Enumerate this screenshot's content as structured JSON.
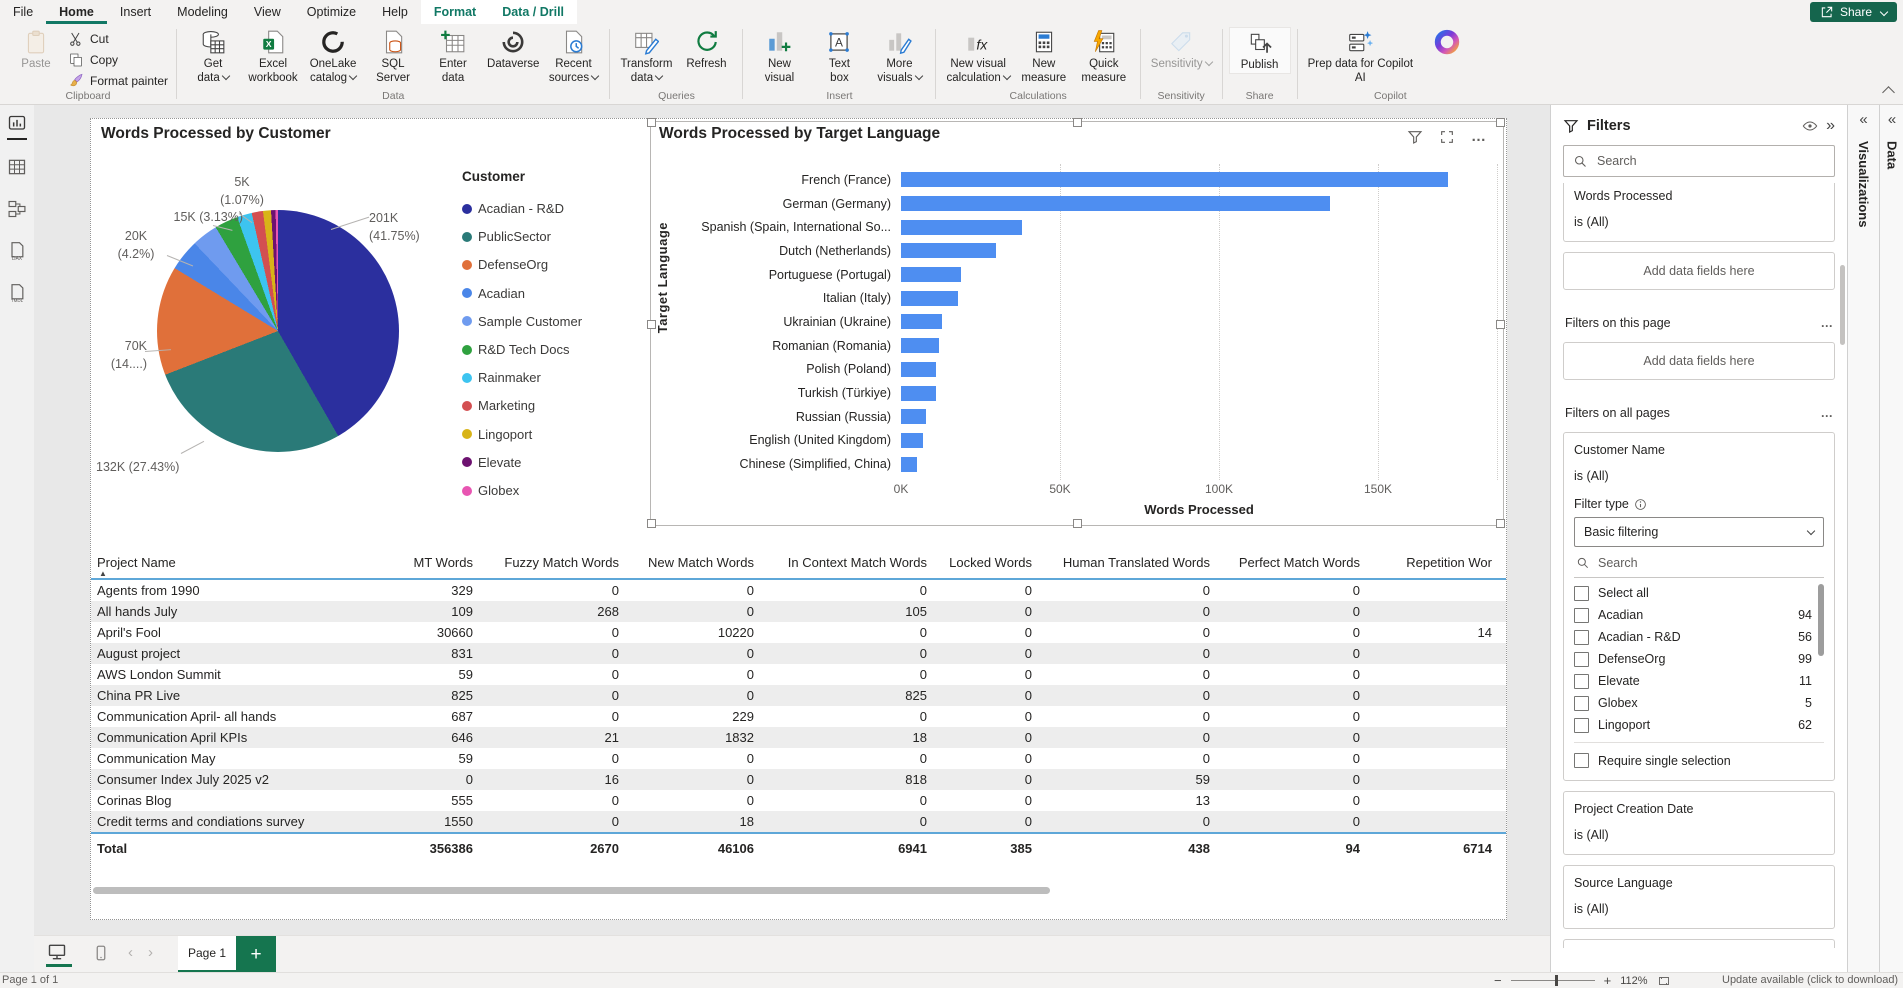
{
  "colors": {
    "accent_teal": "#117865",
    "share_green": "#15654d",
    "tab_green": "#15754f",
    "bar_blue": "#4e8ef1",
    "separator_blue": "#5ea7d8"
  },
  "menu": {
    "tabs": [
      "File",
      "Home",
      "Insert",
      "Modeling",
      "View",
      "Optimize",
      "Help"
    ],
    "active": "Home",
    "contextual": [
      "Format",
      "Data / Drill"
    ],
    "share": "Share"
  },
  "ribbon": {
    "groups": [
      {
        "label": "Clipboard",
        "items": [
          {
            "label": "Paste",
            "icon": "clipboard",
            "large": true,
            "disabled": true
          },
          {
            "label": "Cut",
            "icon": "scissors"
          },
          {
            "label": "Copy",
            "icon": "copy"
          },
          {
            "label": "Format painter",
            "icon": "brush"
          }
        ]
      },
      {
        "label": "Data",
        "items": [
          {
            "label": "Get\ndata",
            "icon": "database",
            "large": true,
            "caret": true
          },
          {
            "label": "Excel\nworkbook",
            "icon": "excel",
            "large": true
          },
          {
            "label": "OneLake\ncatalog",
            "icon": "onelake",
            "large": true,
            "caret": true
          },
          {
            "label": "SQL\nServer",
            "icon": "sql",
            "large": true
          },
          {
            "label": "Enter\ndata",
            "icon": "enterdata",
            "large": true
          },
          {
            "label": "Dataverse",
            "icon": "dataverse",
            "large": true
          },
          {
            "label": "Recent\nsources",
            "icon": "recent",
            "large": true,
            "caret": true
          }
        ]
      },
      {
        "label": "Queries",
        "items": [
          {
            "label": "Transform\ndata",
            "icon": "transform",
            "large": true,
            "caret": true
          },
          {
            "label": "Refresh",
            "icon": "refresh",
            "large": true
          }
        ]
      },
      {
        "label": "Insert",
        "items": [
          {
            "label": "New\nvisual",
            "icon": "newvisual",
            "large": true
          },
          {
            "label": "Text\nbox",
            "icon": "textbox",
            "large": true
          },
          {
            "label": "More\nvisuals",
            "icon": "morevisuals",
            "large": true,
            "caret": true
          }
        ]
      },
      {
        "label": "Calculations",
        "items": [
          {
            "label": "New visual\ncalculation",
            "icon": "fx",
            "large": true,
            "caret": true
          },
          {
            "label": "New\nmeasure",
            "icon": "calculator",
            "large": true
          },
          {
            "label": "Quick\nmeasure",
            "icon": "quickmeasure",
            "large": true
          }
        ]
      },
      {
        "label": "Sensitivity",
        "items": [
          {
            "label": "Sensitivity",
            "icon": "sensitivity",
            "large": true,
            "disabled": true,
            "caret": true
          }
        ]
      },
      {
        "label": "Share",
        "items": [
          {
            "label": "Publish",
            "icon": "publish",
            "large": true,
            "highlight": true
          }
        ]
      },
      {
        "label": "Copilot",
        "items": [
          {
            "label": "Prep data for Copilot\nAI",
            "icon": "prepdata",
            "large": true
          },
          {
            "label": "",
            "icon": "copilot",
            "large": true
          }
        ]
      }
    ]
  },
  "sidebar": {
    "items": [
      "report-view",
      "table-view",
      "model-view",
      "dax-query-view",
      "tmdl-view"
    ],
    "active": "report-view"
  },
  "chart_data": [
    {
      "type": "pie",
      "title": "Words Processed by Customer",
      "legend_title": "Customer",
      "legend_position": "right",
      "slices": [
        {
          "label": "Acadian - R&D",
          "color": "#2b2f9e",
          "pct": 41.75,
          "value": "201K",
          "callout": "201K\n(41.75%)"
        },
        {
          "label": "PublicSector",
          "color": "#2a7a78",
          "pct": 27.43,
          "value": "132K",
          "callout": "132K (27.43%)"
        },
        {
          "label": "DefenseOrg",
          "color": "#e0703a",
          "pct": 14.6,
          "value": "70K",
          "callout": "70K\n(14....)"
        },
        {
          "label": "Acadian",
          "color": "#4a86e8",
          "pct": 4.2,
          "value": "20K",
          "callout": "20K\n(4.2%)"
        },
        {
          "label": "Sample Customer",
          "color": "#6f9bef",
          "pct": 3.5
        },
        {
          "label": "R&D Tech Docs",
          "color": "#2fa13f",
          "pct": 3.13,
          "value": "15K",
          "callout": "15K (3.13%)"
        },
        {
          "label": "Rainmaker",
          "color": "#3dc4f0",
          "pct": 2.0
        },
        {
          "label": "Marketing",
          "color": "#d34f51",
          "pct": 1.5
        },
        {
          "label": "Lingoport",
          "color": "#d8b418",
          "pct": 1.07,
          "value": "5K",
          "callout": "5K\n(1.07%)"
        },
        {
          "label": "Elevate",
          "color": "#6d1270",
          "pct": 0.6
        },
        {
          "label": "Globex",
          "color": "#e855b2",
          "pct": 0.32
        }
      ]
    },
    {
      "type": "bar",
      "orientation": "horizontal",
      "title": "Words Processed by Target Language",
      "xlabel": "Words Processed",
      "ylabel": "Target Language",
      "grid": true,
      "categories": [
        "French (France)",
        "German (Germany)",
        "Spanish (Spain, International So...",
        "Dutch (Netherlands)",
        "Portuguese (Portugal)",
        "Italian (Italy)",
        "Ukrainian (Ukraine)",
        "Romanian (Romania)",
        "Polish (Poland)",
        "Turkish (Türkiye)",
        "Russian (Russia)",
        "English (United Kingdom)",
        "Chinese (Simplified, China)"
      ],
      "values_k": [
        172,
        135,
        38,
        30,
        19,
        18,
        13,
        12,
        11,
        11,
        8,
        7,
        5
      ],
      "x_ticks": [
        {
          "label": "0K",
          "k": 0
        },
        {
          "label": "50K",
          "k": 50
        },
        {
          "label": "100K",
          "k": 100
        },
        {
          "label": "150K",
          "k": 150
        }
      ],
      "xlim_k": [
        0,
        187
      ]
    }
  ],
  "table": {
    "headers": [
      "Project Name",
      "MT Words",
      "Fuzzy Match Words",
      "New Match Words",
      "In Context Match Words",
      "Locked Words",
      "Human Translated Words",
      "Perfect Match Words",
      "Repetition Wor"
    ],
    "sorted_by": "Project Name",
    "rows": [
      [
        "Agents from 1990",
        "329",
        "0",
        "0",
        "0",
        "0",
        "0",
        "0",
        ""
      ],
      [
        "All hands July",
        "109",
        "268",
        "0",
        "105",
        "0",
        "0",
        "0",
        ""
      ],
      [
        "April's Fool",
        "30660",
        "0",
        "10220",
        "0",
        "0",
        "0",
        "0",
        "14"
      ],
      [
        "August project",
        "831",
        "0",
        "0",
        "0",
        "0",
        "0",
        "0",
        ""
      ],
      [
        "AWS London Summit",
        "59",
        "0",
        "0",
        "0",
        "0",
        "0",
        "0",
        ""
      ],
      [
        "China PR Live",
        "825",
        "0",
        "0",
        "825",
        "0",
        "0",
        "0",
        ""
      ],
      [
        "Communication April- all hands",
        "687",
        "0",
        "229",
        "0",
        "0",
        "0",
        "0",
        ""
      ],
      [
        "Communication April KPIs",
        "646",
        "21",
        "1832",
        "18",
        "0",
        "0",
        "0",
        ""
      ],
      [
        "Communication May",
        "59",
        "0",
        "0",
        "0",
        "0",
        "0",
        "0",
        ""
      ],
      [
        "Consumer Index July 2025 v2",
        "0",
        "16",
        "0",
        "818",
        "0",
        "59",
        "0",
        ""
      ],
      [
        "Corinas Blog",
        "555",
        "0",
        "0",
        "0",
        "0",
        "13",
        "0",
        ""
      ],
      [
        "Credit terms and condiations survey",
        "1550",
        "0",
        "18",
        "0",
        "0",
        "0",
        "0",
        ""
      ]
    ],
    "total": [
      "Total",
      "356386",
      "2670",
      "46106",
      "6941",
      "385",
      "438",
      "94",
      "6714"
    ]
  },
  "filters": {
    "title": "Filters",
    "search_placeholder": "Search",
    "add_fields": "Add data fields here",
    "visual_filter": {
      "field": "Words Processed",
      "condition": "is (All)"
    },
    "page_section": "Filters on this page",
    "all_section": "Filters on all pages",
    "customer": {
      "field": "Customer Name",
      "condition": "is (All)",
      "filter_type_label": "Filter type",
      "filter_type_value": "Basic filtering",
      "search_placeholder": "Search",
      "options": [
        {
          "label": "Select all",
          "count": ""
        },
        {
          "label": "Acadian",
          "count": "94"
        },
        {
          "label": "Acadian - R&D",
          "count": "56"
        },
        {
          "label": "DefenseOrg",
          "count": "99"
        },
        {
          "label": "Elevate",
          "count": "11"
        },
        {
          "label": "Globex",
          "count": "5"
        },
        {
          "label": "Lingoport",
          "count": "62"
        }
      ],
      "require_single": "Require single selection"
    },
    "date": {
      "field": "Project Creation Date",
      "condition": "is (All)"
    },
    "source": {
      "field": "Source Language",
      "condition": "is (All)"
    }
  },
  "side_tabs": [
    {
      "label": "Visualizations"
    },
    {
      "label": "Data"
    }
  ],
  "pagebar": {
    "page_tab": "Page 1"
  },
  "statusbar": {
    "left": "Page 1 of 1",
    "zoom": "112%",
    "update": "Update available (click to download)"
  }
}
